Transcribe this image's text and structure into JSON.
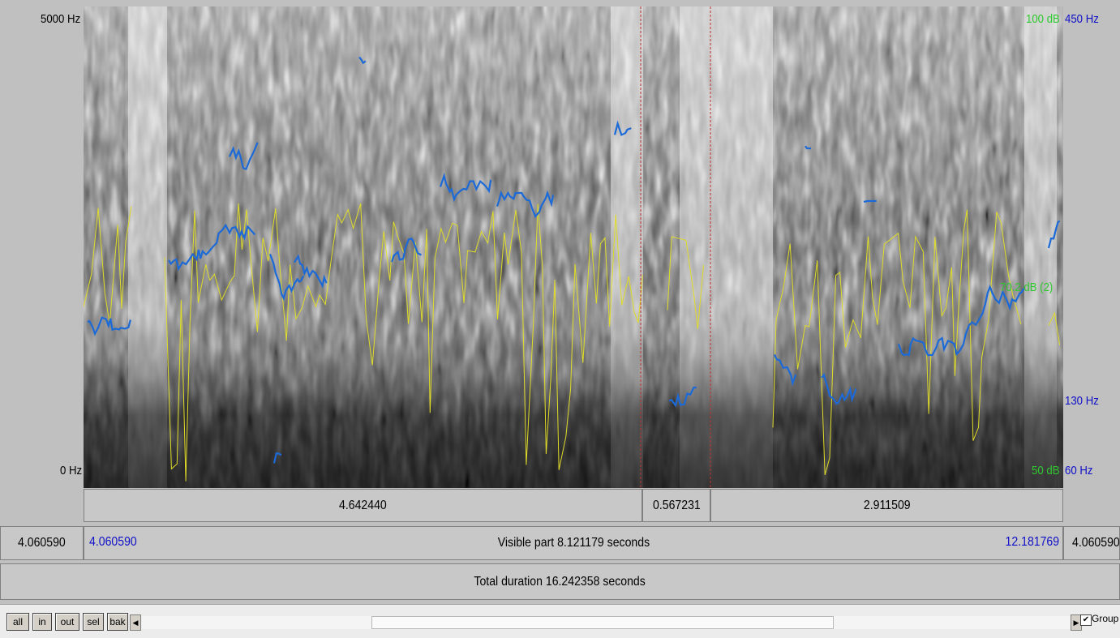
{
  "colors": {
    "pitch": "#1c6ad8",
    "intensity": "#e0dc28",
    "cursor": "#c03030",
    "hz_label": "#1010c8",
    "db_label": "#30c830"
  },
  "axis": {
    "freq_top": "5000 Hz",
    "freq_bottom": "0 Hz",
    "db_top": "100 dB",
    "db_mid": "70.2 dB",
    "db_mid_suffix": "(2)",
    "db_bottom": "50 dB",
    "pitch_top": "450 Hz",
    "pitch_mid": "130 Hz",
    "pitch_bottom": "60 Hz"
  },
  "selection": {
    "before": "4.642440",
    "sel": "0.567231",
    "after": "2.911509"
  },
  "visible": {
    "left_outer": "4.060590",
    "left_start": "4.060590",
    "text": "Visible part 8.121179 seconds",
    "right_end": "12.181769",
    "right_outer": "4.060590"
  },
  "total": {
    "text": "Total duration 16.242358 seconds"
  },
  "toolbar": {
    "all": "all",
    "in": "in",
    "out": "out",
    "sel": "sel",
    "bak": "bak",
    "group_label": "Group",
    "group_checked": true
  }
}
